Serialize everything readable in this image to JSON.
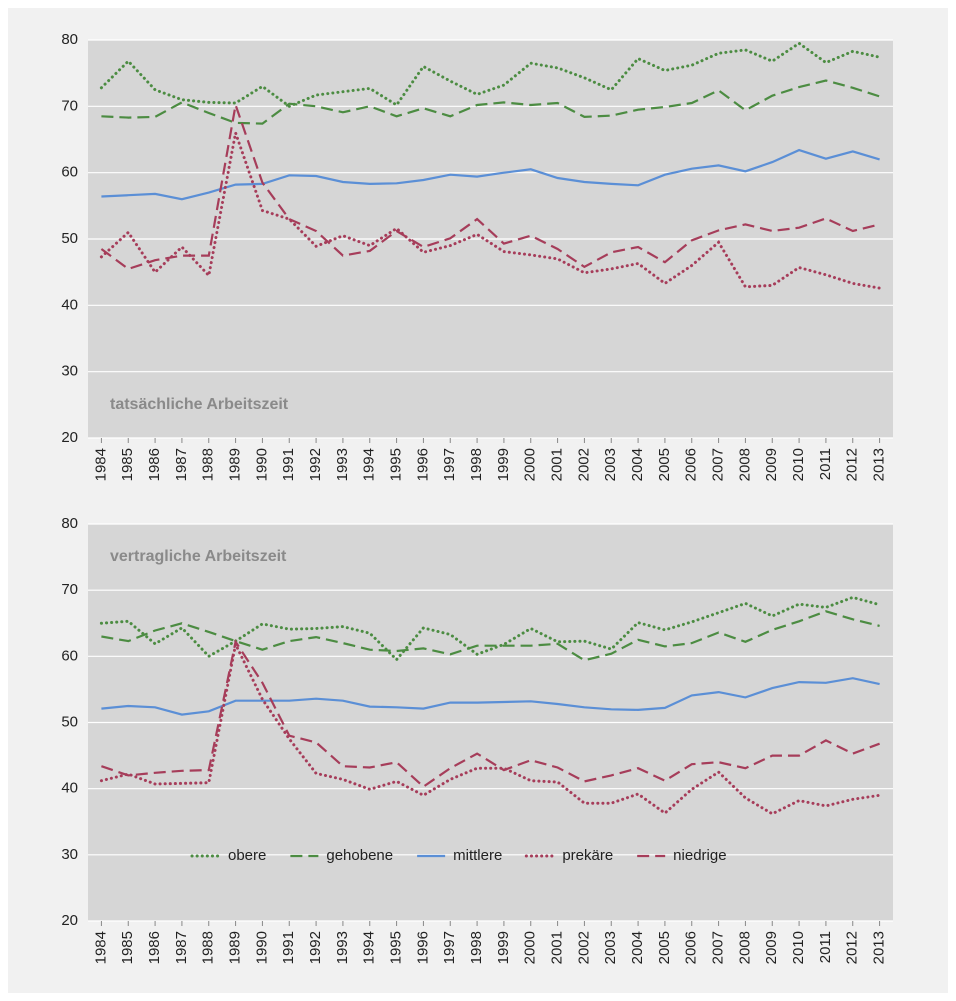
{
  "chart_data": [
    {
      "type": "line",
      "annotation": "tatsächliche Arbeitszeit",
      "categories": [
        "1984",
        "1985",
        "1986",
        "1987",
        "1988",
        "1989",
        "1990",
        "1991",
        "1992",
        "1993",
        "1994",
        "1995",
        "1996",
        "1997",
        "1998",
        "1999",
        "2000",
        "2001",
        "2002",
        "2003",
        "2004",
        "2005",
        "2006",
        "2007",
        "2008",
        "2009",
        "2010",
        "2011",
        "2012",
        "2013"
      ],
      "ylim": [
        20,
        80
      ],
      "yticks": [
        20,
        30,
        40,
        50,
        60,
        70,
        80
      ],
      "grid": true,
      "series": [
        {
          "name": "obere",
          "color": "#4c8c42",
          "style": "dotted",
          "values": [
            72.8,
            76.8,
            72.5,
            71,
            70.6,
            70.5,
            73,
            70,
            71.7,
            72.2,
            72.7,
            70.2,
            76,
            73.8,
            71.8,
            73.2,
            76.5,
            75.8,
            74.3,
            72.5,
            77.2,
            75.4,
            76.2,
            78,
            78.5,
            76.8,
            79.5,
            76.6,
            78.3,
            77.4
          ]
        },
        {
          "name": "gehobene",
          "color": "#4c8c42",
          "style": "dashed",
          "values": [
            68.5,
            68.3,
            68.4,
            70.6,
            69,
            67.5,
            67.4,
            70.4,
            70,
            69.1,
            70,
            68.5,
            69.7,
            68.5,
            70.2,
            70.6,
            70.2,
            70.5,
            68.4,
            68.6,
            69.5,
            69.9,
            70.5,
            72.4,
            69.4,
            71.6,
            72.9,
            73.9,
            72.8,
            71.5
          ]
        },
        {
          "name": "mittlere",
          "color": "#5b8fd6",
          "style": "solid",
          "values": [
            56.4,
            56.6,
            56.8,
            56,
            57,
            58.2,
            58.3,
            59.6,
            59.5,
            58.6,
            58.3,
            58.4,
            58.9,
            59.7,
            59.4,
            60,
            60.5,
            59.2,
            58.6,
            58.3,
            58.1,
            59.7,
            60.6,
            61.1,
            60.2,
            61.6,
            63.4,
            62.1,
            63.2,
            62
          ]
        },
        {
          "name": "prekäre",
          "color": "#a63d5a",
          "style": "dotted",
          "values": [
            47.3,
            51,
            45,
            48.8,
            44.5,
            66,
            54.3,
            53,
            48.9,
            50.5,
            49,
            51.6,
            48,
            49,
            50.7,
            48.1,
            47.6,
            47,
            44.9,
            45.5,
            46.3,
            43.3,
            46,
            49.5,
            42.8,
            43,
            45.7,
            44.6,
            43.3,
            42.6
          ]
        },
        {
          "name": "niedrige",
          "color": "#a63d5a",
          "style": "dashed",
          "values": [
            48.5,
            45.5,
            46.8,
            47.5,
            47.5,
            70.2,
            58.5,
            53,
            51.2,
            47.5,
            48.2,
            51.2,
            48.8,
            50.1,
            53,
            49.3,
            50.5,
            48.5,
            45.8,
            48,
            48.8,
            46.5,
            49.8,
            51.3,
            52.2,
            51.2,
            51.7,
            53.1,
            51.2,
            52.2
          ]
        }
      ]
    },
    {
      "type": "line",
      "annotation": "vertragliche Arbeitszeit",
      "legend": "bottom",
      "categories": [
        "1984",
        "1985",
        "1986",
        "1987",
        "1988",
        "1989",
        "1990",
        "1991",
        "1992",
        "1993",
        "1994",
        "1995",
        "1996",
        "1997",
        "1998",
        "1999",
        "2000",
        "2001",
        "2002",
        "2003",
        "2004",
        "2005",
        "2006",
        "2007",
        "2008",
        "2009",
        "2010",
        "2011",
        "2012",
        "2013"
      ],
      "ylim": [
        20,
        80
      ],
      "yticks": [
        20,
        30,
        40,
        50,
        60,
        70,
        80
      ],
      "grid": true,
      "series": [
        {
          "name": "obere",
          "color": "#4c8c42",
          "style": "dotted",
          "values": [
            65,
            65.3,
            61.9,
            64.3,
            60,
            62.3,
            64.9,
            64.1,
            64.2,
            64.5,
            63.5,
            59.5,
            64.3,
            63.3,
            60.3,
            61.8,
            64.2,
            62.2,
            62.3,
            61.1,
            65.1,
            64,
            65.2,
            66.6,
            68,
            66.1,
            67.9,
            67.4,
            68.9,
            67.8
          ]
        },
        {
          "name": "gehobene",
          "color": "#4c8c42",
          "style": "dashed",
          "values": [
            63,
            62.3,
            63.9,
            65,
            63.7,
            62.3,
            61,
            62.3,
            62.9,
            62,
            61,
            60.8,
            61.2,
            60.3,
            61.6,
            61.6,
            61.6,
            61.9,
            59.4,
            60.4,
            62.5,
            61.5,
            62,
            63.6,
            62.2,
            64,
            65.3,
            66.8,
            65.6,
            64.6
          ]
        },
        {
          "name": "mittlere",
          "color": "#5b8fd6",
          "style": "solid",
          "values": [
            52.1,
            52.5,
            52.3,
            51.2,
            51.7,
            53.3,
            53.3,
            53.3,
            53.6,
            53.3,
            52.4,
            52.3,
            52.1,
            53,
            53,
            53.1,
            53.2,
            52.8,
            52.3,
            52,
            51.9,
            52.2,
            54.1,
            54.6,
            53.8,
            55.2,
            56.1,
            56,
            56.7,
            55.8
          ]
        },
        {
          "name": "prekäre",
          "color": "#a63d5a",
          "style": "dotted",
          "values": [
            41.2,
            42.2,
            40.7,
            40.8,
            40.9,
            61.8,
            53.5,
            47.5,
            42.3,
            41.4,
            39.9,
            41.1,
            39,
            41.4,
            43.1,
            43.1,
            41.2,
            41,
            37.8,
            37.8,
            39.2,
            36.3,
            39.9,
            42.5,
            38.6,
            36.2,
            38.2,
            37.4,
            38.4,
            39
          ]
        },
        {
          "name": "niedrige",
          "color": "#a63d5a",
          "style": "dashed",
          "values": [
            43.4,
            42,
            42.4,
            42.7,
            42.8,
            62.2,
            56,
            48,
            47,
            43.4,
            43.2,
            44,
            40.3,
            43.1,
            45.3,
            42.8,
            44.3,
            43.2,
            41.1,
            42,
            43.1,
            41.2,
            43.7,
            44,
            43.1,
            45,
            45,
            47.3,
            45.3,
            46.8
          ]
        }
      ]
    }
  ]
}
